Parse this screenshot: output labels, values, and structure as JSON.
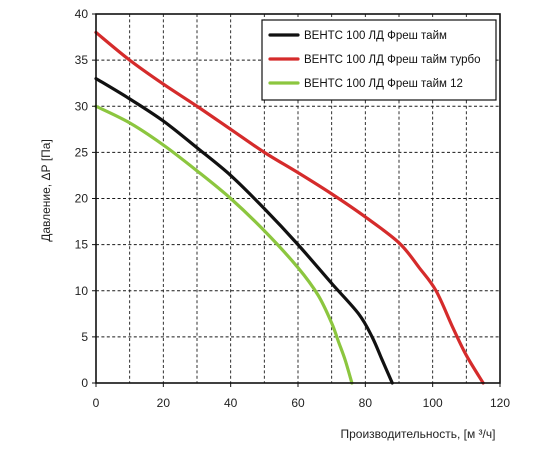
{
  "chart_data": {
    "type": "line",
    "xlabel": "Производительность, [м ³/ч]",
    "ylabel": "Давление, ΔР [Па]",
    "xlim": [
      0,
      120
    ],
    "ylim": [
      0,
      40
    ],
    "xticks": [
      0,
      20,
      40,
      60,
      80,
      100,
      120
    ],
    "yticks": [
      0,
      5,
      10,
      15,
      20,
      25,
      30,
      35,
      40
    ],
    "grid": true,
    "legend_position": "top-right",
    "series": [
      {
        "name": "ВЕНТС 100 ЛД  Фреш тайм",
        "color": "#111111",
        "x": [
          0,
          10,
          20,
          30,
          40,
          50,
          60,
          70,
          78,
          82,
          85,
          88
        ],
        "y": [
          33,
          30.8,
          28.4,
          25.5,
          22.5,
          18.9,
          15,
          10.8,
          7.5,
          5,
          2.5,
          0
        ]
      },
      {
        "name": "ВЕНТС 100 ЛД Фреш тайм турбо",
        "color": "#d52b2b",
        "x": [
          0,
          10,
          20,
          30,
          40,
          50,
          60,
          70,
          80,
          90,
          96,
          101,
          106,
          110,
          115
        ],
        "y": [
          38,
          35,
          32.4,
          30,
          27.5,
          25,
          22.8,
          20.5,
          18,
          15.2,
          12.5,
          10,
          6,
          3,
          0
        ]
      },
      {
        "name": "ВЕНТС 100 ЛД Фреш тайм 12",
        "color": "#8cc63f",
        "x": [
          0,
          10,
          20,
          30,
          40,
          50,
          60,
          66,
          70,
          72,
          74,
          76
        ],
        "y": [
          30,
          28.2,
          25.8,
          23,
          20,
          16.5,
          12.5,
          9.5,
          6.5,
          4.5,
          2.5,
          0
        ]
      }
    ]
  }
}
